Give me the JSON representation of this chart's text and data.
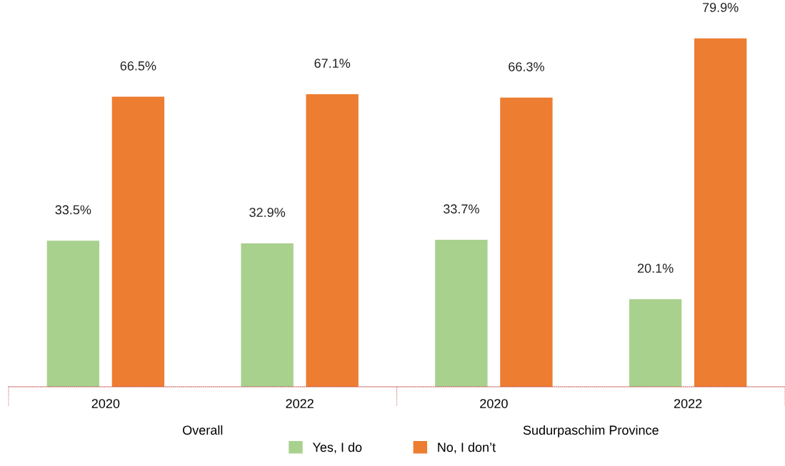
{
  "chart_data": {
    "type": "bar",
    "categories": [
      "2020",
      "2022",
      "2020",
      "2022"
    ],
    "series": [
      {
        "name": "Yes, I do",
        "color": "#a9d18e",
        "values": [
          33.5,
          32.9,
          33.7,
          20.1
        ],
        "value_labels": [
          "33.5%",
          "32.9%",
          "33.7%",
          "20.1%"
        ]
      },
      {
        "name": "No, I don’t",
        "color": "#ed7d31",
        "values": [
          66.5,
          67.1,
          66.3,
          79.9
        ],
        "value_labels": [
          "66.5%",
          "67.1%",
          "66.3%",
          "79.9%"
        ]
      }
    ],
    "annotations": [
      "Overall",
      "Sudurpaschim Province"
    ],
    "legend": "bottom",
    "grid": false
  }
}
